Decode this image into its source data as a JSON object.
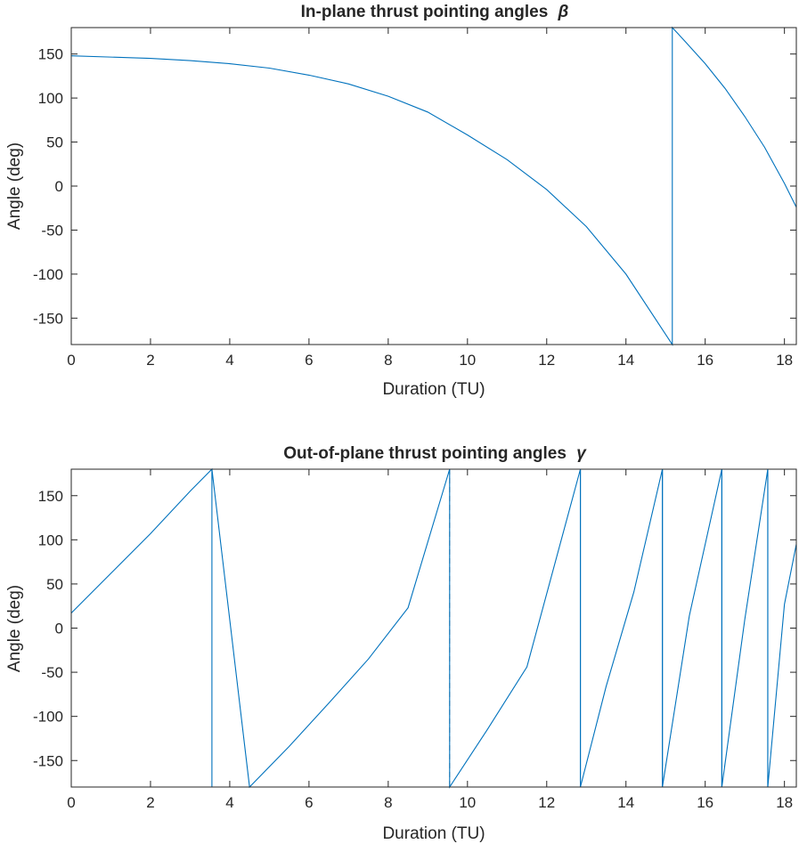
{
  "chart_data": [
    {
      "type": "line",
      "title": "In-plane thrust pointing angles",
      "title_symbol": "β",
      "xlabel": "Duration (TU)",
      "ylabel": "Angle (deg)",
      "xlim": [
        0,
        18.3
      ],
      "ylim": [
        -180,
        180
      ],
      "xticks": [
        0,
        2,
        4,
        6,
        8,
        10,
        12,
        14,
        16,
        18
      ],
      "xtick_labels": [
        "0",
        "2",
        "4",
        "6",
        "8",
        "10",
        "12",
        "14",
        "16",
        "18"
      ],
      "yticks": [
        150,
        100,
        50,
        0,
        -50,
        -100,
        -150
      ],
      "ytick_labels": [
        "150",
        "100",
        "50",
        "0",
        "-50",
        "-100",
        "-150"
      ],
      "series": [
        {
          "name": "beta",
          "color": "#0072bd",
          "x": [
            0,
            1,
            2,
            3,
            4,
            5,
            6,
            7,
            8,
            9,
            10,
            11,
            12,
            13,
            14,
            15.17,
            15.17,
            15.5,
            16,
            16.5,
            17,
            17.5,
            18,
            18.3
          ],
          "y": [
            148,
            146.5,
            145,
            142.5,
            139,
            134,
            126,
            116,
            102,
            84,
            58,
            30,
            -4,
            -46,
            -100,
            -180,
            180,
            164,
            139,
            111,
            79,
            44,
            3,
            -24
          ]
        }
      ],
      "markers": []
    },
    {
      "type": "line",
      "title": "Out-of-plane thrust pointing angles",
      "title_symbol": "γ",
      "xlabel": "Duration (TU)",
      "ylabel": "Angle (deg)",
      "xlim": [
        0,
        18.3
      ],
      "ylim": [
        -180,
        180
      ],
      "xticks": [
        0,
        2,
        4,
        6,
        8,
        10,
        12,
        14,
        16,
        18
      ],
      "xtick_labels": [
        "0",
        "2",
        "4",
        "6",
        "8",
        "10",
        "12",
        "14",
        "16",
        "18"
      ],
      "yticks": [
        150,
        100,
        50,
        0,
        -50,
        -100,
        -150
      ],
      "ytick_labels": [
        "150",
        "100",
        "50",
        "0",
        "-50",
        "-100",
        "-150"
      ],
      "series": [
        {
          "name": "gamma",
          "color": "#0072bd",
          "x": [
            0,
            1,
            2,
            3,
            3.55,
            3.55,
            4.5,
            5.5,
            6.5,
            7.5,
            8.5,
            9.55,
            9.55,
            10.5,
            11.5,
            12.85,
            12.85,
            13.5,
            14.2,
            14.92,
            14.92,
            15.6,
            16.42,
            16.42,
            17,
            17.58,
            17.58,
            18,
            18.3
          ],
          "y": [
            17,
            62,
            107,
            155,
            180,
            180,
            -180,
            -134,
            -85,
            -35,
            23,
            180,
            -180,
            -115,
            -44,
            180,
            -180,
            -66,
            41,
            180,
            -180,
            14,
            180,
            -180,
            10,
            180,
            -180,
            27,
            95
          ]
        },
        {
          "name": "gamma-drops",
          "color": "#0072bd",
          "segments_x": [
            3.55,
            12.85,
            14.92,
            16.42,
            17.58
          ],
          "segments_y": [
            [
              180,
              -180
            ],
            [
              180,
              -180
            ],
            [
              180,
              -180
            ],
            [
              180,
              -180
            ],
            [
              180,
              -180
            ]
          ]
        }
      ],
      "markers": [
        {
          "type": "vline",
          "x": 9.55,
          "style": "dashed",
          "color": "#808080"
        }
      ]
    }
  ]
}
